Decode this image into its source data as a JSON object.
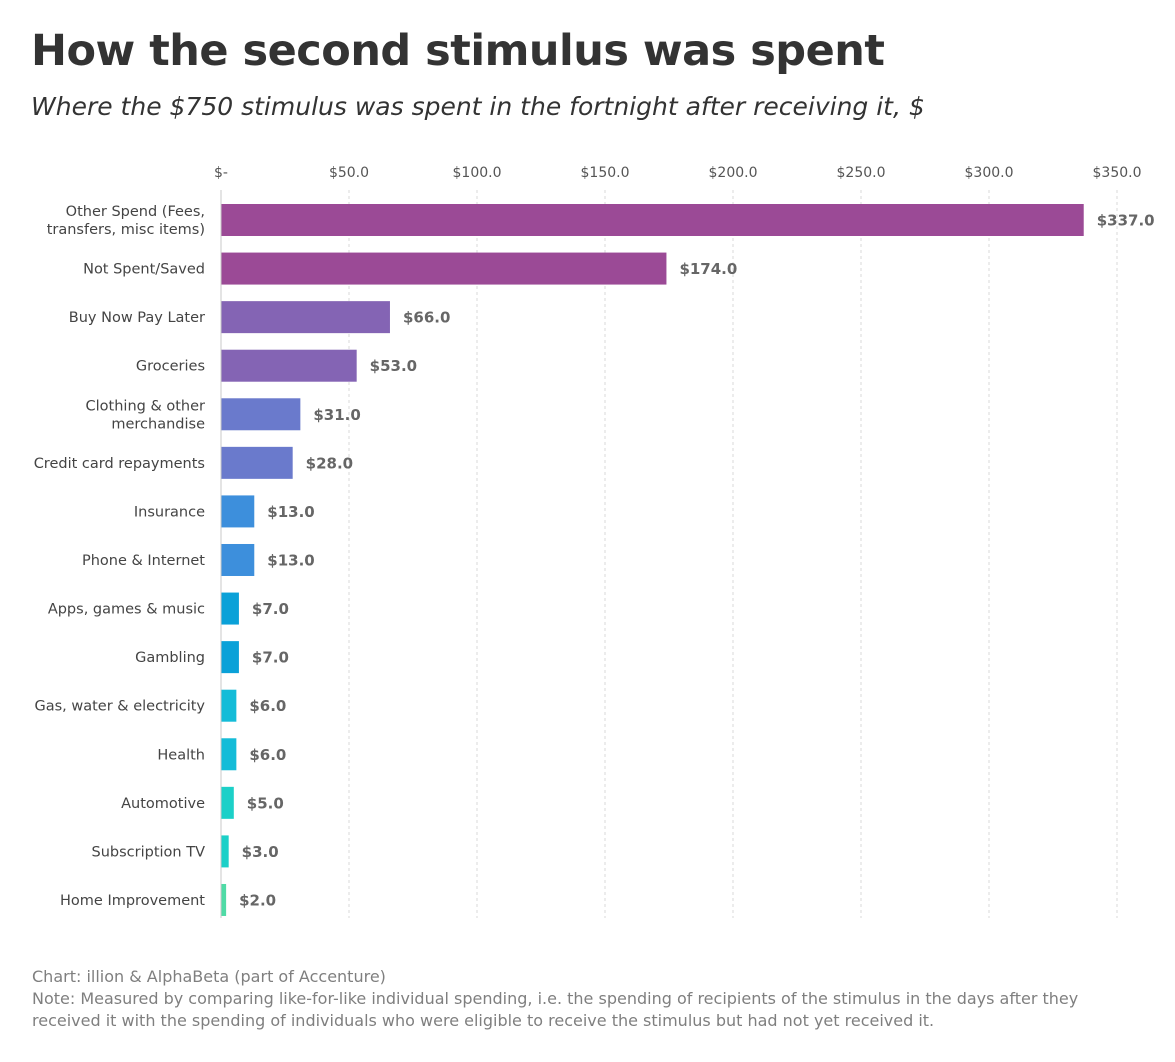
{
  "title": "How the second stimulus was spent",
  "subtitle": "Where the $750 stimulus was spent in the fortnight after receiving it, $",
  "footer": {
    "source": "Chart: illion & AlphaBeta (part of Accenture)",
    "note": "Note: Measured by comparing like-for-like individual spending, i.e. the spending of recipients of the stimulus in the days after they received it with the spending of individuals who were eligible to receive the stimulus but had not yet received it."
  },
  "chart_data": {
    "type": "bar",
    "orientation": "horizontal",
    "title": "How the second stimulus was spent",
    "subtitle": "Where the $750 stimulus was spent in the fortnight after receiving it, $",
    "xlim": [
      0,
      350
    ],
    "grid": true,
    "axis_position": "top",
    "ticks": [
      0,
      50,
      100,
      150,
      200,
      250,
      300,
      350
    ],
    "tick_labels": [
      "$-",
      "$50.0",
      "$100.0",
      "$150.0",
      "$200.0",
      "$250.0",
      "$300.0",
      "$350.0"
    ],
    "categories": [
      [
        "Other Spend (Fees,",
        "transfers, misc items)"
      ],
      [
        "Not Spent/Saved"
      ],
      [
        "Buy Now Pay Later"
      ],
      [
        "Groceries"
      ],
      [
        "Clothing & other",
        "merchandise"
      ],
      [
        "Credit card repayments"
      ],
      [
        "Insurance"
      ],
      [
        "Phone & Internet"
      ],
      [
        "Apps, games & music"
      ],
      [
        "Gambling"
      ],
      [
        "Gas, water & electricity"
      ],
      [
        "Health"
      ],
      [
        "Automotive"
      ],
      [
        "Subscription TV"
      ],
      [
        "Home Improvement"
      ]
    ],
    "values": [
      337,
      174,
      66,
      53,
      31,
      28,
      13,
      13,
      7,
      7,
      6,
      6,
      5,
      3,
      2
    ],
    "value_labels": [
      "$337.0",
      "$174.0",
      "$66.0",
      "$53.0",
      "$31.0",
      "$28.0",
      "$13.0",
      "$13.0",
      "$7.0",
      "$7.0",
      "$6.0",
      "$6.0",
      "$5.0",
      "$3.0",
      "$2.0"
    ],
    "colors": [
      "#9b4a96",
      "#9b4a96",
      "#8464b4",
      "#8464b4",
      "#6a7acc",
      "#6a7acc",
      "#3d8fdc",
      "#3d8fdc",
      "#0aa1d8",
      "#0aa1d8",
      "#14bcd8",
      "#14bcd8",
      "#1cd0c8",
      "#1cd0c8",
      "#4fdba6"
    ]
  }
}
